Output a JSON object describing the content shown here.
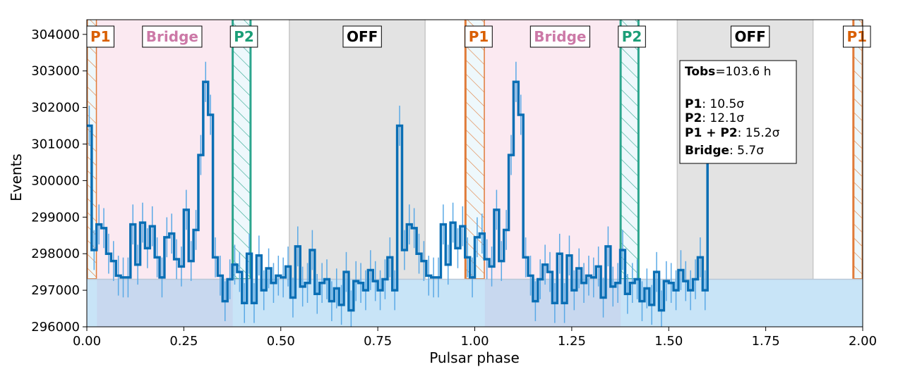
{
  "chart_data": {
    "type": "histogram",
    "title": "",
    "xlabel": "Pulsar phase",
    "ylabel": "Events",
    "xlim": [
      0.0,
      2.0
    ],
    "ylim": [
      296000,
      304300
    ],
    "xticks": [
      0.0,
      0.25,
      0.5,
      0.75,
      1.0,
      1.25,
      1.5,
      1.75,
      2.0
    ],
    "xtick_labels": [
      "0.00",
      "0.25",
      "0.50",
      "0.75",
      "1.00",
      "1.25",
      "1.50",
      "1.75",
      "2.00"
    ],
    "yticks": [
      296000,
      297000,
      298000,
      299000,
      300000,
      301000,
      302000,
      303000,
      304000
    ],
    "ytick_labels": [
      "296000",
      "297000",
      "298000",
      "299000",
      "300000",
      "301000",
      "302000",
      "303000",
      "304000"
    ],
    "bin_width": 0.0125,
    "background_level": 297300,
    "counts": [
      301500,
      298100,
      298800,
      298700,
      298000,
      297800,
      297400,
      297350,
      297350,
      298800,
      297700,
      298850,
      298150,
      298750,
      297900,
      297350,
      298450,
      298550,
      297850,
      297650,
      299200,
      297800,
      298650,
      300700,
      302700,
      301800,
      297900,
      297400,
      296700,
      297300,
      297700,
      297500,
      296650,
      298000,
      296650,
      297950,
      297000,
      297600,
      297200,
      297400,
      297350,
      297650,
      296800,
      298200,
      297100,
      297200,
      298100,
      296900,
      297200,
      297300,
      296700,
      297050,
      296600,
      297500,
      296450,
      297250,
      297200,
      297000,
      297550,
      297250,
      297000,
      297300,
      297900,
      297000
    ],
    "regions": [
      {
        "name": "P1",
        "ranges": [
          [
            0.0,
            0.026
          ],
          [
            0.976,
            1.026
          ],
          [
            1.976,
            2.0
          ]
        ],
        "color": "#e07b39"
      },
      {
        "name": "Bridge",
        "ranges": [
          [
            0.026,
            0.376
          ],
          [
            1.026,
            1.376
          ]
        ],
        "color": "#cc79a7"
      },
      {
        "name": "P2",
        "ranges": [
          [
            0.376,
            0.422
          ],
          [
            1.376,
            1.422
          ]
        ],
        "color": "#2ca58d"
      },
      {
        "name": "OFF",
        "ranges": [
          [
            0.522,
            0.872
          ],
          [
            1.522,
            1.872
          ]
        ],
        "color": "#888888"
      }
    ],
    "region_labels": [
      {
        "text": "P1",
        "x": 0.035,
        "color": "#d95f02"
      },
      {
        "text": "Bridge",
        "x": 0.22,
        "color": "#cc79a7"
      },
      {
        "text": "P2",
        "x": 0.405,
        "color": "#1b9e77"
      },
      {
        "text": "OFF",
        "x": 0.71,
        "color": "#000000"
      },
      {
        "text": "P1",
        "x": 1.01,
        "color": "#d95f02"
      },
      {
        "text": "Bridge",
        "x": 1.22,
        "color": "#cc79a7"
      },
      {
        "text": "P2",
        "x": 1.405,
        "color": "#1b9e77"
      },
      {
        "text": "OFF",
        "x": 1.71,
        "color": "#000000"
      },
      {
        "text": "P1",
        "x": 1.985,
        "color": "#d95f02"
      }
    ],
    "colors": {
      "line": "#0a6eb4",
      "errorbar": "#5aa9e6",
      "fill": "#c8e4f7",
      "bridge_fill": "#fbe9f1",
      "off_fill": "#e3e3e3",
      "p_fill": "#eef8fc"
    },
    "stats": {
      "tobs_label": "Tobs",
      "tobs_value": "=103.6 h",
      "p1_label": "P1",
      "p1_value": ": 10.5σ",
      "p2_label": "P2",
      "p2_value": ": 12.1σ",
      "p1p2_label": "P1 + P2",
      "p1p2_value": ": 15.2σ",
      "bridge_label": "Bridge",
      "bridge_value": ": 5.7σ"
    }
  }
}
